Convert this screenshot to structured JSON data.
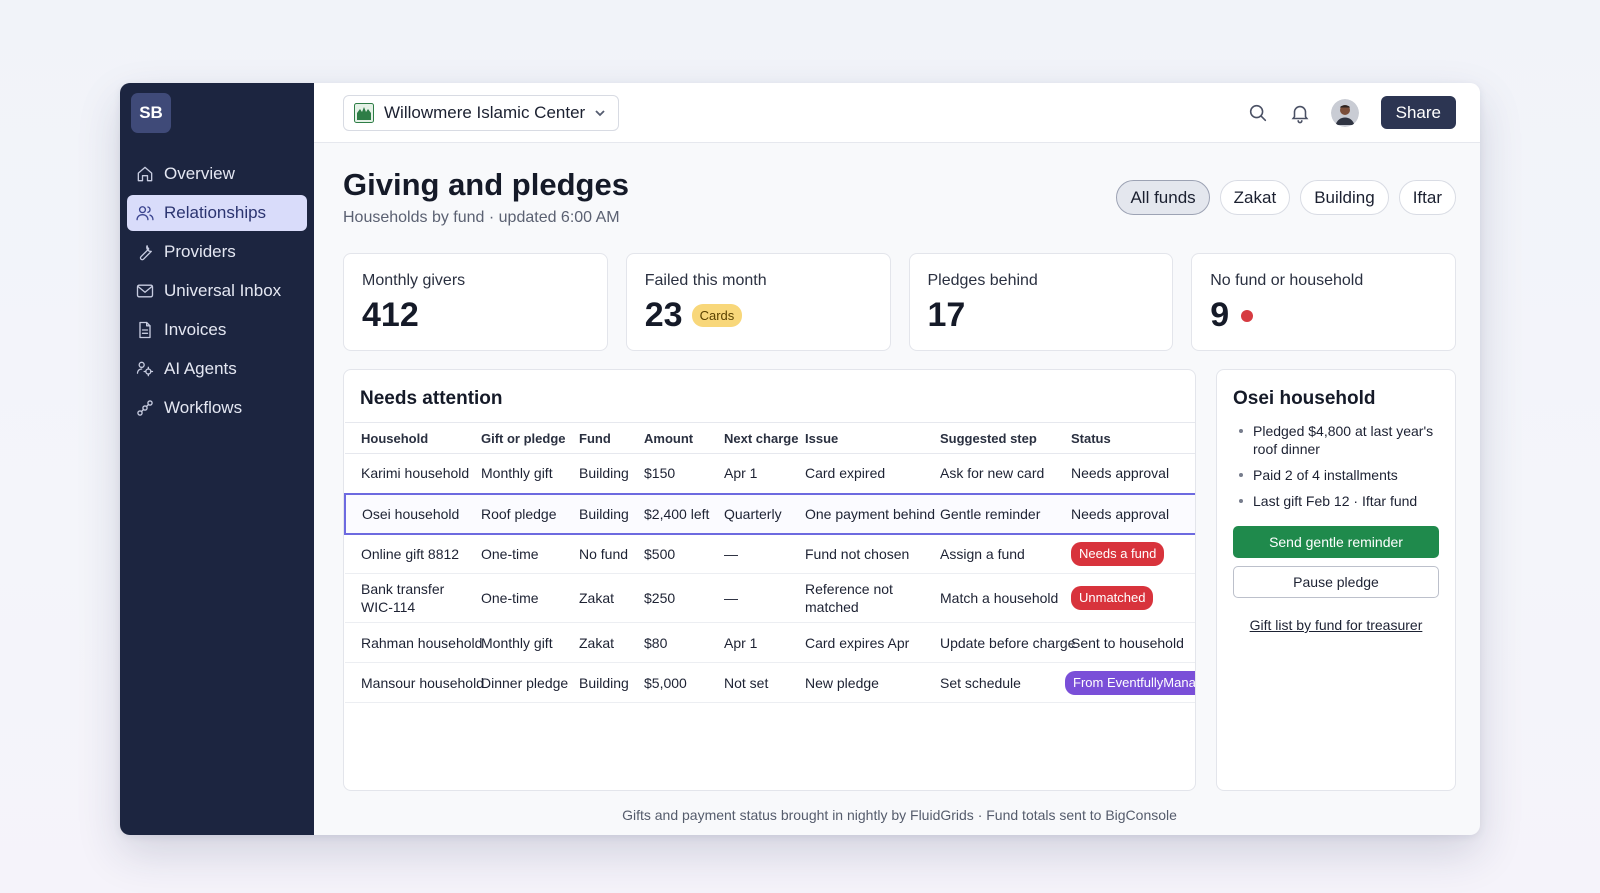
{
  "sidebar": {
    "logo": "SB",
    "items": [
      {
        "label": "Overview",
        "icon": "home-icon"
      },
      {
        "label": "Relationships",
        "icon": "users-icon",
        "active": true
      },
      {
        "label": "Providers",
        "icon": "wrench-icon"
      },
      {
        "label": "Universal Inbox",
        "icon": "mail-icon"
      },
      {
        "label": "Invoices",
        "icon": "document-icon"
      },
      {
        "label": "AI Agents",
        "icon": "agents-icon"
      },
      {
        "label": "Workflows",
        "icon": "workflow-icon"
      }
    ]
  },
  "topbar": {
    "org_name": "Willowmere Islamic Center",
    "share_label": "Share"
  },
  "page": {
    "title": "Giving and pledges",
    "subtitle": "Households by fund · updated 6:00 AM",
    "filters": [
      "All funds",
      "Zakat",
      "Building",
      "Iftar"
    ],
    "active_filter": "All funds"
  },
  "stats": [
    {
      "label": "Monthly givers",
      "value": "412"
    },
    {
      "label": "Failed this month",
      "value": "23",
      "pill": "Cards"
    },
    {
      "label": "Pledges behind",
      "value": "17"
    },
    {
      "label": "No fund or household",
      "value": "9",
      "dot_color": "#d63b41"
    }
  ],
  "attention": {
    "title": "Needs attention",
    "columns": [
      "Household",
      "Gift or pledge",
      "Fund",
      "Amount",
      "Next charge",
      "Issue",
      "Suggested step",
      "Status"
    ],
    "rows": [
      {
        "household": "Karimi household",
        "gift": "Monthly gift",
        "fund": "Building",
        "amount": "$150",
        "next": "Apr 1",
        "issue": "Card expired",
        "step": "Ask for new card",
        "status": "Needs approval",
        "status_style": "text"
      },
      {
        "household": "Osei household",
        "gift": "Roof pledge",
        "fund": "Building",
        "amount": "$2,400 left",
        "next": "Quarterly",
        "issue": "One payment behind",
        "step": "Gentle reminder",
        "status": "Needs approval",
        "status_style": "text",
        "selected": true
      },
      {
        "household": "Online gift 8812",
        "gift": "One-time",
        "fund": "No fund",
        "amount": "$500",
        "next": "—",
        "issue": "Fund not chosen",
        "step": "Assign a fund",
        "status": "Needs a fund",
        "status_style": "red"
      },
      {
        "household": "Bank transfer WIC-114",
        "gift": "One-time",
        "fund": "Zakat",
        "amount": "$250",
        "next": "—",
        "issue": "Reference not matched",
        "step": "Match a household",
        "status": "Unmatched",
        "status_style": "red"
      },
      {
        "household": "Rahman household",
        "gift": "Monthly gift",
        "fund": "Zakat",
        "amount": "$80",
        "next": "Apr 1",
        "issue": "Card expires Apr",
        "step": "Update before charge",
        "status": "Sent to household",
        "status_style": "text"
      },
      {
        "household": "Mansour household",
        "gift": "Dinner pledge",
        "fund": "Building",
        "amount": "$5,000",
        "next": "Not set",
        "issue": "New pledge",
        "step": "Set schedule",
        "status": "From EventfullyManaged",
        "status_style": "purple"
      }
    ]
  },
  "detail": {
    "title": "Osei household",
    "bullets": [
      "Pledged $4,800 at last year's roof dinner",
      "Paid 2 of 4 installments",
      "Last gift Feb 12 · Iftar fund"
    ],
    "primary_button": "Send gentle reminder",
    "secondary_button": "Pause pledge",
    "link": "Gift list by fund for treasurer"
  },
  "footer": "Gifts and payment status brought in nightly by FluidGrids · Fund totals sent to BigConsole"
}
